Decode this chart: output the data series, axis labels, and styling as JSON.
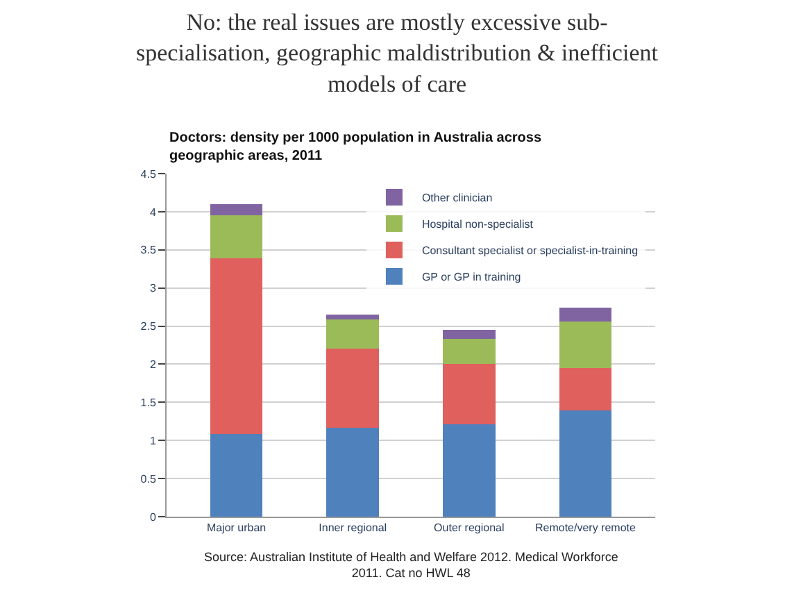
{
  "chart_data": {
    "type": "bar",
    "stacked": true,
    "title": "No: the real issues are mostly excessive sub-specialisation, geographic maldistribution & inefficient models of care",
    "subtitle": "Doctors: density per 1000 population in Australia across geographic areas, 2011",
    "categories": [
      "Major urban",
      "Inner regional",
      "Outer regional",
      "Remote/very remote"
    ],
    "series": [
      {
        "name": "GP or GP in training",
        "color": "#4f81bd",
        "values": [
          1.08,
          1.17,
          1.21,
          1.39
        ]
      },
      {
        "name": "Consultant specialist or specialist-in-training",
        "color": "#e0605e",
        "values": [
          2.31,
          1.03,
          0.79,
          0.56
        ]
      },
      {
        "name": "Hospital non-specialist",
        "color": "#9bbb59",
        "values": [
          0.56,
          0.39,
          0.33,
          0.61
        ]
      },
      {
        "name": "Other clinician",
        "color": "#8064a2",
        "values": [
          0.15,
          0.06,
          0.12,
          0.18
        ]
      }
    ],
    "ylim": [
      0,
      4.5
    ],
    "yticks": [
      0,
      0.5,
      1,
      1.5,
      2,
      2.5,
      3,
      3.5,
      4,
      4.5
    ],
    "grid": "y",
    "legend": "top right",
    "annotations": [
      "Source: Australian Institute of Health and Welfare 2012. Medical Workforce 2011. Cat no HWL 48"
    ]
  }
}
